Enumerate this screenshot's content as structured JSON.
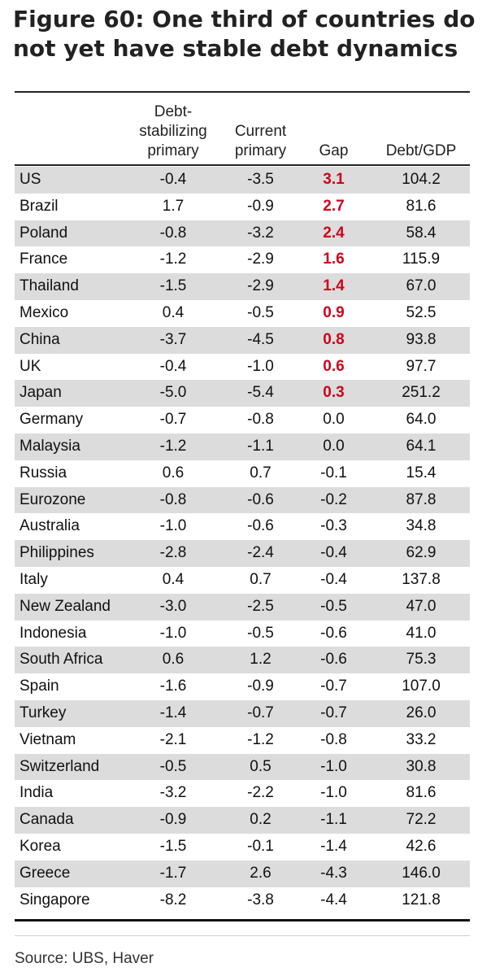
{
  "title": "Figure 60: One third of countries do not yet have stable debt dynamics",
  "headers": {
    "country": "",
    "debt_stab": [
      "Debt-",
      "stabilizing",
      "primary"
    ],
    "current": [
      "Current",
      "primary"
    ],
    "gap": "Gap",
    "debt_gdp": "Debt/GDP"
  },
  "rows": [
    {
      "country": "US",
      "debt_stabilizing": "-0.4",
      "current": "-3.5",
      "gap": "3.1",
      "debt_gdp": "104.2"
    },
    {
      "country": "Brazil",
      "debt_stabilizing": "1.7",
      "current": "-0.9",
      "gap": "2.7",
      "debt_gdp": "81.6"
    },
    {
      "country": "Poland",
      "debt_stabilizing": "-0.8",
      "current": "-3.2",
      "gap": "2.4",
      "debt_gdp": "58.4"
    },
    {
      "country": "France",
      "debt_stabilizing": "-1.2",
      "current": "-2.9",
      "gap": "1.6",
      "debt_gdp": "115.9"
    },
    {
      "country": "Thailand",
      "debt_stabilizing": "-1.5",
      "current": "-2.9",
      "gap": "1.4",
      "debt_gdp": "67.0"
    },
    {
      "country": "Mexico",
      "debt_stabilizing": "0.4",
      "current": "-0.5",
      "gap": "0.9",
      "debt_gdp": "52.5"
    },
    {
      "country": "China",
      "debt_stabilizing": "-3.7",
      "current": "-4.5",
      "gap": "0.8",
      "debt_gdp": "93.8"
    },
    {
      "country": "UK",
      "debt_stabilizing": "-0.4",
      "current": "-1.0",
      "gap": "0.6",
      "debt_gdp": "97.7"
    },
    {
      "country": "Japan",
      "debt_stabilizing": "-5.0",
      "current": "-5.4",
      "gap": "0.3",
      "debt_gdp": "251.2"
    },
    {
      "country": "Germany",
      "debt_stabilizing": "-0.7",
      "current": "-0.8",
      "gap": "0.0",
      "debt_gdp": "64.0"
    },
    {
      "country": "Malaysia",
      "debt_stabilizing": "-1.2",
      "current": "-1.1",
      "gap": "0.0",
      "debt_gdp": "64.1"
    },
    {
      "country": "Russia",
      "debt_stabilizing": "0.6",
      "current": "0.7",
      "gap": "-0.1",
      "debt_gdp": "15.4"
    },
    {
      "country": "Eurozone",
      "debt_stabilizing": "-0.8",
      "current": "-0.6",
      "gap": "-0.2",
      "debt_gdp": "87.8"
    },
    {
      "country": "Australia",
      "debt_stabilizing": "-1.0",
      "current": "-0.6",
      "gap": "-0.3",
      "debt_gdp": "34.8"
    },
    {
      "country": "Philippines",
      "debt_stabilizing": "-2.8",
      "current": "-2.4",
      "gap": "-0.4",
      "debt_gdp": "62.9"
    },
    {
      "country": "Italy",
      "debt_stabilizing": "0.4",
      "current": "0.7",
      "gap": "-0.4",
      "debt_gdp": "137.8"
    },
    {
      "country": "New Zealand",
      "debt_stabilizing": "-3.0",
      "current": "-2.5",
      "gap": "-0.5",
      "debt_gdp": "47.0"
    },
    {
      "country": "Indonesia",
      "debt_stabilizing": "-1.0",
      "current": "-0.5",
      "gap": "-0.6",
      "debt_gdp": "41.0"
    },
    {
      "country": "South Africa",
      "debt_stabilizing": "0.6",
      "current": "1.2",
      "gap": "-0.6",
      "debt_gdp": "75.3"
    },
    {
      "country": "Spain",
      "debt_stabilizing": "-1.6",
      "current": "-0.9",
      "gap": "-0.7",
      "debt_gdp": "107.0"
    },
    {
      "country": "Turkey",
      "debt_stabilizing": "-1.4",
      "current": "-0.7",
      "gap": "-0.7",
      "debt_gdp": "26.0"
    },
    {
      "country": "Vietnam",
      "debt_stabilizing": "-2.1",
      "current": "-1.2",
      "gap": "-0.8",
      "debt_gdp": "33.2"
    },
    {
      "country": "Switzerland",
      "debt_stabilizing": "-0.5",
      "current": "0.5",
      "gap": "-1.0",
      "debt_gdp": "30.8"
    },
    {
      "country": "India",
      "debt_stabilizing": "-3.2",
      "current": "-2.2",
      "gap": "-1.0",
      "debt_gdp": "81.6"
    },
    {
      "country": "Canada",
      "debt_stabilizing": "-0.9",
      "current": "0.2",
      "gap": "-1.1",
      "debt_gdp": "72.2"
    },
    {
      "country": "Korea",
      "debt_stabilizing": "-1.5",
      "current": "-0.1",
      "gap": "-1.4",
      "debt_gdp": "42.6"
    },
    {
      "country": "Greece",
      "debt_stabilizing": "-1.7",
      "current": "2.6",
      "gap": "-4.3",
      "debt_gdp": "146.0"
    },
    {
      "country": "Singapore",
      "debt_stabilizing": "-8.2",
      "current": "-3.8",
      "gap": "-4.4",
      "debt_gdp": "121.8"
    }
  ],
  "source": "Source: UBS, Haver",
  "colors": {
    "positive_gap": "#d0021b",
    "alt_row": "#dcdcdc"
  }
}
